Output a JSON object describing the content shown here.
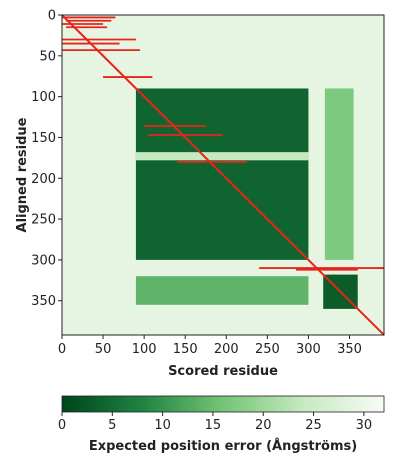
{
  "chart_data": {
    "type": "heatmap",
    "title": "",
    "xlabel": "Scored residue",
    "ylabel": "Aligned residue",
    "xlim": [
      0,
      392
    ],
    "ylim": [
      0,
      392
    ],
    "x_ticks": [
      0,
      50,
      100,
      150,
      200,
      250,
      300,
      350
    ],
    "y_ticks": [
      0,
      50,
      100,
      150,
      200,
      250,
      300,
      350
    ],
    "colormap": "Greens_r",
    "colors": {
      "low": "#00441b",
      "mid": "#74c476",
      "high": "#f7fcf5",
      "overlay_line": "#e8231c"
    },
    "regions": [
      {
        "x": [
          0,
          392
        ],
        "y": [
          0,
          392
        ],
        "value": 29
      },
      {
        "x": [
          90,
          300
        ],
        "y": [
          90,
          300
        ],
        "value": 4
      },
      {
        "x": [
          90,
          300
        ],
        "y": [
          168,
          178
        ],
        "value": 24
      },
      {
        "x": [
          320,
          355
        ],
        "y": [
          90,
          300
        ],
        "value": 17
      },
      {
        "x": [
          90,
          300
        ],
        "y": [
          320,
          355
        ],
        "value": 14
      },
      {
        "x": [
          318,
          360
        ],
        "y": [
          318,
          360
        ],
        "value": 3
      }
    ],
    "diagonal": {
      "from": [
        0,
        0
      ],
      "to": [
        392,
        392
      ],
      "color": "#e8231c"
    },
    "segments": [
      {
        "y": 3,
        "x": [
          0,
          65
        ]
      },
      {
        "y": 7,
        "x": [
          5,
          60
        ]
      },
      {
        "y": 11,
        "x": [
          0,
          50
        ]
      },
      {
        "y": 15,
        "x": [
          5,
          55
        ]
      },
      {
        "y": 30,
        "x": [
          0,
          90
        ]
      },
      {
        "y": 35,
        "x": [
          0,
          70
        ]
      },
      {
        "y": 43,
        "x": [
          0,
          95
        ]
      },
      {
        "y": 76,
        "x": [
          50,
          110
        ]
      },
      {
        "y": 136,
        "x": [
          100,
          175
        ]
      },
      {
        "y": 147,
        "x": [
          105,
          195
        ]
      },
      {
        "y": 180,
        "x": [
          140,
          225
        ]
      },
      {
        "y": 310,
        "x": [
          240,
          392
        ]
      },
      {
        "y": 312,
        "x": [
          285,
          360
        ]
      }
    ],
    "colorbar": {
      "label": "Expected position error (Ångströms)",
      "range": [
        0,
        32
      ],
      "ticks": [
        0,
        5,
        10,
        15,
        20,
        25,
        30
      ]
    }
  }
}
